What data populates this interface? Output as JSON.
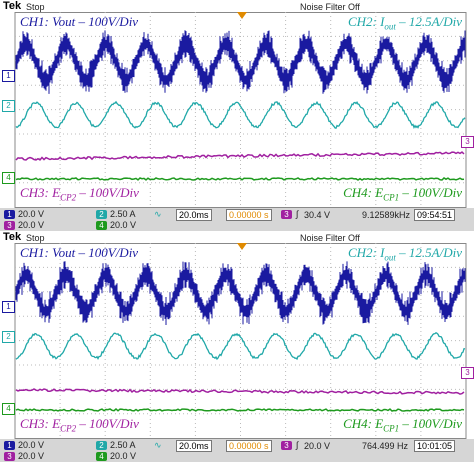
{
  "panels": [
    {
      "tek": "Tek",
      "state": "Stop",
      "filter": "Noise Filter Off",
      "ch1": {
        "prefix": "CH1: Vout – 100V/Div"
      },
      "ch2": {
        "prefix": "CH2: I",
        "sub": "out",
        "suffix": " – 12.5A/Div"
      },
      "ch3": {
        "prefix": "CH3: E",
        "sub": "CP2",
        "suffix": " – 100V/Div"
      },
      "ch4": {
        "prefix": "CH4: E",
        "sub": "CP1",
        "suffix": " – 100V/Div"
      },
      "markers": [
        "1",
        "2",
        "3",
        "4"
      ],
      "status": {
        "c1": "20.0 V",
        "c2": "2.50 A",
        "c3": "20.0 V",
        "c4": "20.0 V",
        "time": "20.0ms",
        "pos": "0.00000 s",
        "trig_ch": "3",
        "trig": "30.4 V",
        "freq": "9.12589kHz",
        "clock": "09:54:51"
      }
    },
    {
      "tek": "Tek",
      "state": "Stop",
      "filter": "Noise Filter Off",
      "ch1": {
        "prefix": "CH1: Vout – 100V/Div"
      },
      "ch2": {
        "prefix": "CH2: I",
        "sub": "out",
        "suffix": " – 12.5A/Div"
      },
      "ch3": {
        "prefix": "CH3: E",
        "sub": "CP2",
        "suffix": " – 100V/Div"
      },
      "ch4": {
        "prefix": "CH4: E",
        "sub": "CP1",
        "suffix": " – 100V/Div"
      },
      "markers": [
        "1",
        "2",
        "3",
        "4"
      ],
      "status": {
        "c1": "20.0 V",
        "c2": "2.50 A",
        "c3": "20.0 V",
        "c4": "20.0 V",
        "time": "20.0ms",
        "pos": "0.00000 s",
        "trig_ch": "3",
        "trig": "20.0 V",
        "freq": "764.499 Hz",
        "clock": "10:01:05"
      }
    }
  ]
}
